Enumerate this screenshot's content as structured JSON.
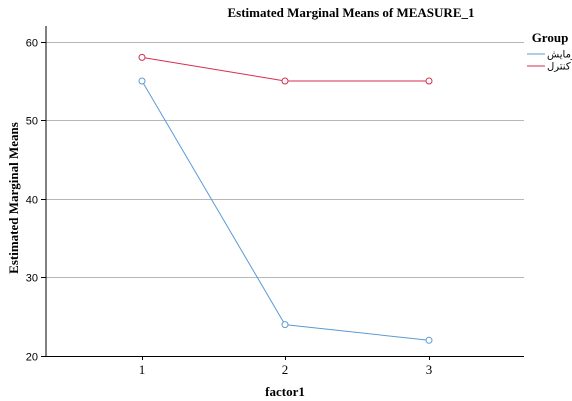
{
  "chart_data": {
    "type": "line",
    "title": "Estimated Marginal Means of MEASURE_1",
    "xlabel": "factor1",
    "ylabel": "Estimated Marginal Means",
    "categories": [
      "1",
      "2",
      "3"
    ],
    "yticks": [
      "20",
      "30",
      "40",
      "50",
      "60"
    ],
    "ylim": [
      20,
      62
    ],
    "grid": "horizontal",
    "legend": {
      "title": "Group",
      "position": "top-right"
    },
    "series": [
      {
        "name": "زمایش",
        "color": "#5b9bd5",
        "values": [
          55,
          24,
          22
        ]
      },
      {
        "name": "کنترل",
        "color": "#d62e4d",
        "values": [
          58,
          55,
          55
        ]
      }
    ]
  }
}
